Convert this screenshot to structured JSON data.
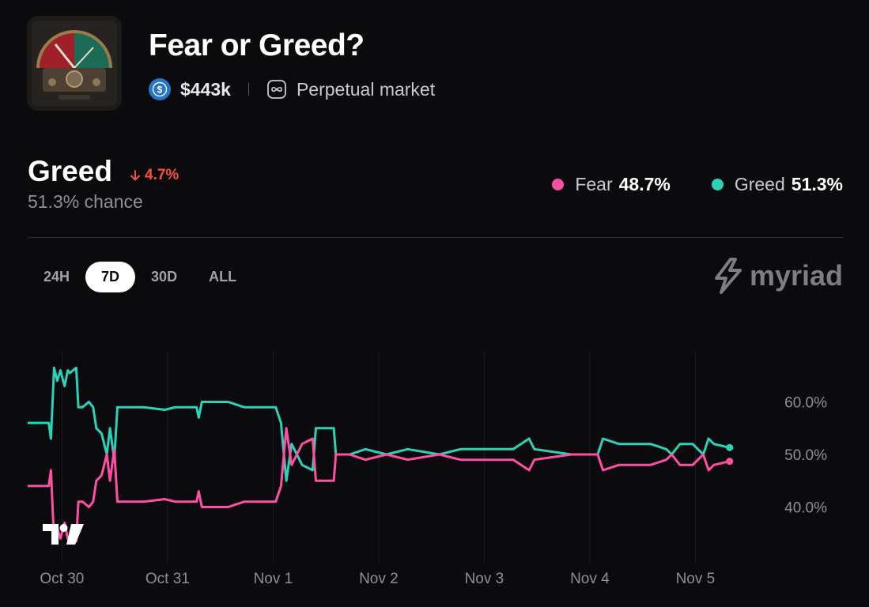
{
  "market": {
    "title": "Fear or Greed?",
    "volume": "$443k",
    "market_type": "Perpetual market",
    "icons": {
      "volume": "usdc-coin-icon",
      "market_type": "infinity-icon"
    }
  },
  "summary": {
    "leading_outcome": "Greed",
    "change": "4.7%",
    "change_direction": "down",
    "chance": "51.3% chance"
  },
  "legend": [
    {
      "name": "Fear",
      "value": "48.7%",
      "color": "#ff4fa3"
    },
    {
      "name": "Greed",
      "value": "51.3%",
      "color": "#2ad3b8"
    }
  ],
  "timeframes": [
    {
      "label": "24H",
      "active": false
    },
    {
      "label": "7D",
      "active": true
    },
    {
      "label": "30D",
      "active": false
    },
    {
      "label": "ALL",
      "active": false
    }
  ],
  "brand": "myriad",
  "chart_data": {
    "type": "line",
    "x_ticks": [
      "Oct 30",
      "Oct 31",
      "Nov 1",
      "Nov 2",
      "Nov 3",
      "Nov 4",
      "Nov 5"
    ],
    "y_ticks": [
      "60.0%",
      "50.0%",
      "40.0%"
    ],
    "ylim": [
      33,
      70
    ],
    "x_range": [
      29.6,
      36.25
    ],
    "grid": "vertical",
    "series": [
      {
        "name": "Greed",
        "color": "#2ad3b8",
        "points": [
          [
            29.6,
            56
          ],
          [
            29.8,
            56
          ],
          [
            29.82,
            53
          ],
          [
            29.85,
            66.5
          ],
          [
            29.88,
            64
          ],
          [
            29.91,
            66
          ],
          [
            29.95,
            63
          ],
          [
            29.98,
            66
          ],
          [
            30.0,
            65.5
          ],
          [
            30.06,
            66.5
          ],
          [
            30.08,
            59
          ],
          [
            30.12,
            59
          ],
          [
            30.18,
            60
          ],
          [
            30.22,
            59
          ],
          [
            30.25,
            55
          ],
          [
            30.3,
            54
          ],
          [
            30.35,
            50
          ],
          [
            30.38,
            55
          ],
          [
            30.42,
            49
          ],
          [
            30.45,
            59
          ],
          [
            30.7,
            59
          ],
          [
            30.9,
            58.5
          ],
          [
            31.0,
            59
          ],
          [
            31.2,
            59
          ],
          [
            31.22,
            57
          ],
          [
            31.25,
            60
          ],
          [
            31.5,
            60
          ],
          [
            31.65,
            59
          ],
          [
            31.95,
            59
          ],
          [
            32.0,
            56
          ],
          [
            32.05,
            45
          ],
          [
            32.1,
            52
          ],
          [
            32.2,
            48
          ],
          [
            32.3,
            47
          ],
          [
            32.33,
            55
          ],
          [
            32.5,
            55
          ],
          [
            32.52,
            50
          ],
          [
            32.65,
            50
          ],
          [
            32.8,
            51
          ],
          [
            33.0,
            50
          ],
          [
            33.2,
            51
          ],
          [
            33.5,
            50
          ],
          [
            33.7,
            51
          ],
          [
            34.0,
            51
          ],
          [
            34.2,
            51
          ],
          [
            34.35,
            53
          ],
          [
            34.4,
            51
          ],
          [
            34.75,
            50
          ],
          [
            35.0,
            50
          ],
          [
            35.05,
            53
          ],
          [
            35.2,
            52
          ],
          [
            35.5,
            52
          ],
          [
            35.65,
            51
          ],
          [
            35.7,
            50
          ],
          [
            35.78,
            52
          ],
          [
            35.9,
            52
          ],
          [
            36.0,
            50
          ],
          [
            36.05,
            53
          ],
          [
            36.1,
            52
          ],
          [
            36.25,
            51.3
          ]
        ]
      },
      {
        "name": "Fear",
        "color": "#ff4fa3",
        "points": [
          [
            29.6,
            44
          ],
          [
            29.8,
            44
          ],
          [
            29.82,
            47
          ],
          [
            29.85,
            33.5
          ],
          [
            29.88,
            36
          ],
          [
            29.91,
            34
          ],
          [
            29.95,
            37
          ],
          [
            29.98,
            34
          ],
          [
            30.0,
            34.5
          ],
          [
            30.06,
            33.5
          ],
          [
            30.08,
            41
          ],
          [
            30.12,
            41
          ],
          [
            30.18,
            40
          ],
          [
            30.22,
            41
          ],
          [
            30.25,
            45
          ],
          [
            30.3,
            46
          ],
          [
            30.35,
            50
          ],
          [
            30.38,
            45
          ],
          [
            30.42,
            51
          ],
          [
            30.45,
            41
          ],
          [
            30.7,
            41
          ],
          [
            30.9,
            41.5
          ],
          [
            31.0,
            41
          ],
          [
            31.2,
            41
          ],
          [
            31.22,
            43
          ],
          [
            31.25,
            40
          ],
          [
            31.5,
            40
          ],
          [
            31.65,
            41
          ],
          [
            31.95,
            41
          ],
          [
            32.0,
            44
          ],
          [
            32.05,
            55
          ],
          [
            32.1,
            48
          ],
          [
            32.2,
            52
          ],
          [
            32.3,
            53
          ],
          [
            32.33,
            45
          ],
          [
            32.5,
            45
          ],
          [
            32.52,
            50
          ],
          [
            32.65,
            50
          ],
          [
            32.8,
            49
          ],
          [
            33.0,
            50
          ],
          [
            33.2,
            49
          ],
          [
            33.5,
            50
          ],
          [
            33.7,
            49
          ],
          [
            34.0,
            49
          ],
          [
            34.2,
            49
          ],
          [
            34.35,
            47
          ],
          [
            34.4,
            49
          ],
          [
            34.75,
            50
          ],
          [
            35.0,
            50
          ],
          [
            35.05,
            47
          ],
          [
            35.2,
            48
          ],
          [
            35.5,
            48
          ],
          [
            35.65,
            49
          ],
          [
            35.7,
            50
          ],
          [
            35.78,
            48
          ],
          [
            35.9,
            48
          ],
          [
            36.0,
            50
          ],
          [
            36.05,
            47
          ],
          [
            36.1,
            48
          ],
          [
            36.25,
            48.7
          ]
        ]
      }
    ]
  }
}
